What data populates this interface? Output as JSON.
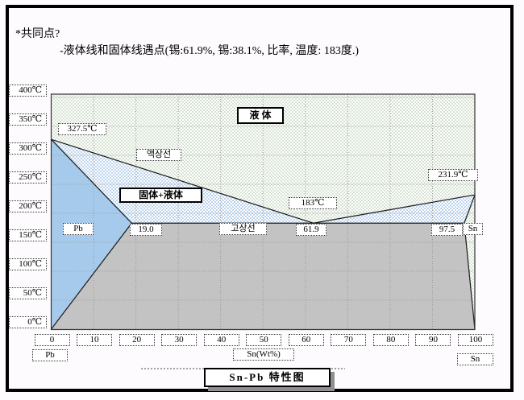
{
  "header": {
    "line1": "*共同点?",
    "line2": "-液体线和固体线遇点(锡:61.9%, 锡:38.1%, 比率, 温度: 183度.)"
  },
  "chart_data": {
    "type": "area",
    "title": "Sn-Pb 特性图",
    "xlabel": "Sn(Wt%)",
    "x_axis_end_labels": {
      "left": "Pb",
      "right": "Sn"
    },
    "x_ticks": [
      "0",
      "10",
      "20",
      "30",
      "40",
      "50",
      "60",
      "70",
      "80",
      "90",
      "100"
    ],
    "y_ticks": [
      "400℃",
      "350℃",
      "300℃",
      "250℃",
      "200℃",
      "150℃",
      "100℃",
      "50℃",
      "0℃"
    ],
    "x_range_wt_percent_sn": [
      0,
      100
    ],
    "y_range_celsius": [
      0,
      400
    ],
    "key_points": {
      "pb_melting_point_c": 327.5,
      "sn_melting_point_c": 231.9,
      "eutectic_composition_wt_sn": 61.9,
      "eutectic_temperature_c": 183,
      "alpha_max_sn_solubility_wt": 19.0,
      "beta_min_sn_wt": 97.5
    },
    "region_labels": {
      "liquid": "液 体",
      "liquidus": "액상선",
      "solid_plus_liquid": "固体+液体",
      "solidus": "고상선",
      "pb": "Pb",
      "sn": "Sn"
    },
    "point_labels": {
      "pb_melting": "327.5℃",
      "sn_melting": "231.9℃",
      "eutectic_temp": "183℃",
      "alpha_limit": "19.0",
      "eutectic_comp": "61.9",
      "beta_limit": "97.5"
    },
    "colors": {
      "liquid_green": "#d6e3d3",
      "mushy_blue": "#bdd4ee",
      "alpha_blue": "#a6caec",
      "solid_gray": "#c3c3c3",
      "grid": "#999999",
      "line": "#1a1a1a"
    },
    "regions": [
      {
        "name": "liquid",
        "fill": "green-checker",
        "points": [
          [
            0,
            405
          ],
          [
            100,
            405
          ],
          [
            100,
            231.9
          ],
          [
            61.9,
            183
          ],
          [
            0,
            327.5
          ]
        ]
      },
      {
        "name": "mushy-left",
        "fill": "blue-checker",
        "points": [
          [
            0,
            327.5
          ],
          [
            61.9,
            183
          ],
          [
            19,
            183
          ]
        ]
      },
      {
        "name": "mushy-right",
        "fill": "blue-checker",
        "points": [
          [
            61.9,
            183
          ],
          [
            100,
            231.9
          ],
          [
            97.5,
            183
          ]
        ]
      },
      {
        "name": "alpha-pb-solid",
        "fill": "solid-blue",
        "points": [
          [
            0,
            327.5
          ],
          [
            19,
            183
          ],
          [
            0,
            0
          ]
        ]
      },
      {
        "name": "beta-sn-solid",
        "fill": "green-checker",
        "points": [
          [
            100,
            231.9
          ],
          [
            97.5,
            183
          ],
          [
            100,
            0
          ]
        ]
      },
      {
        "name": "alpha-beta-solid",
        "fill": "gray",
        "points": [
          [
            19,
            183
          ],
          [
            97.5,
            183
          ],
          [
            100,
            0
          ],
          [
            0,
            0
          ]
        ]
      }
    ],
    "lines": [
      {
        "name": "liquidus",
        "points": [
          [
            0,
            327.5
          ],
          [
            61.9,
            183
          ],
          [
            100,
            231.9
          ]
        ]
      },
      {
        "name": "solidus-left",
        "points": [
          [
            0,
            327.5
          ],
          [
            19,
            183
          ]
        ]
      },
      {
        "name": "solidus-right",
        "points": [
          [
            100,
            231.9
          ],
          [
            97.5,
            183
          ]
        ]
      },
      {
        "name": "eutectic-isotherm",
        "points": [
          [
            19,
            183
          ],
          [
            97.5,
            183
          ]
        ]
      },
      {
        "name": "solvus-alpha",
        "points": [
          [
            19,
            183
          ],
          [
            0,
            0
          ]
        ]
      },
      {
        "name": "solvus-beta",
        "points": [
          [
            97.5,
            183
          ],
          [
            100,
            0
          ]
        ]
      }
    ]
  }
}
